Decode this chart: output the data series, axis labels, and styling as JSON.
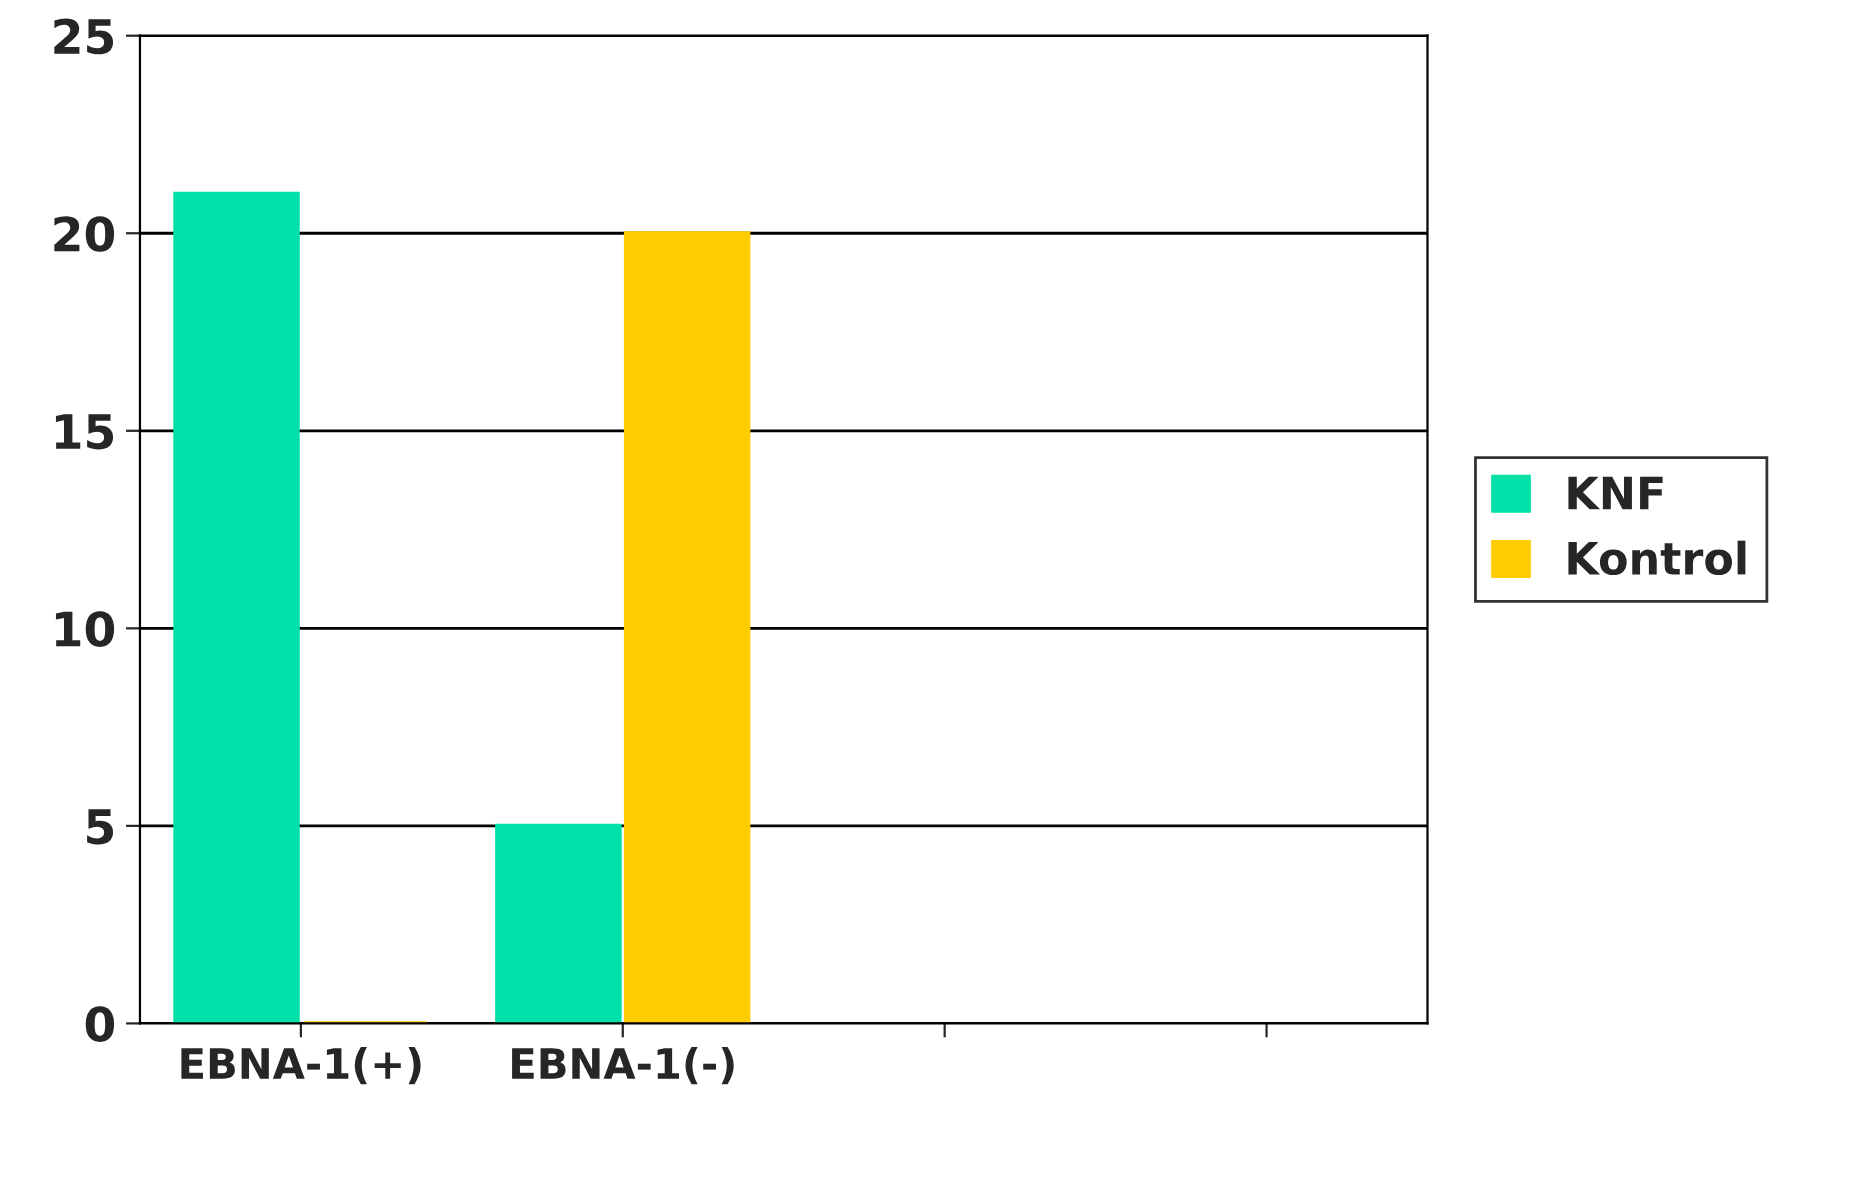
{
  "chart_data": {
    "type": "bar",
    "categories": [
      "EBNA-1(+)",
      "EBNA-1(-)",
      null,
      null
    ],
    "series": [
      {
        "name": "KNF",
        "color": "#00e0a8",
        "values": [
          21,
          5,
          null,
          null
        ]
      },
      {
        "name": "Kontrol",
        "color": "#ffcc00",
        "values": [
          0,
          20,
          null,
          null
        ]
      }
    ],
    "ylim": [
      0,
      25
    ],
    "yticks": [
      0,
      5,
      10,
      15,
      20,
      25
    ],
    "grid": "y",
    "legend": "right"
  }
}
